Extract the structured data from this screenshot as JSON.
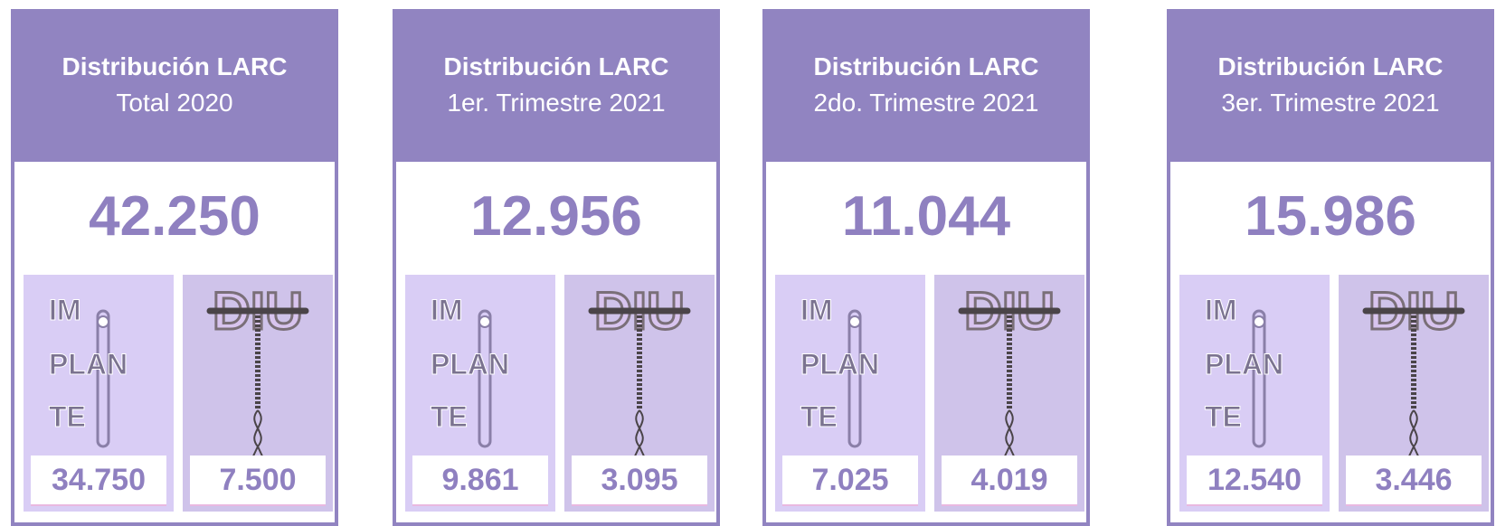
{
  "cards": [
    {
      "title": "Distribución LARC",
      "subtitle": "Total 2020",
      "total": "42.250",
      "implante": "34.750",
      "diu": "7.500"
    },
    {
      "title": "Distribución LARC",
      "subtitle": "1er. Trimestre 2021",
      "total": "12.956",
      "implante": "9.861",
      "diu": "3.095"
    },
    {
      "title": "Distribución LARC",
      "subtitle": "2do. Trimestre 2021",
      "total": "11.044",
      "implante": "7.025",
      "diu": "4.019"
    },
    {
      "title": "Distribución LARC",
      "subtitle": "3er. Trimestre 2021",
      "total": "15.986",
      "implante": "12.540",
      "diu": "3.446"
    }
  ],
  "implant_label": [
    "IM",
    "PLAN",
    "TE"
  ],
  "diu_label": "DIU"
}
